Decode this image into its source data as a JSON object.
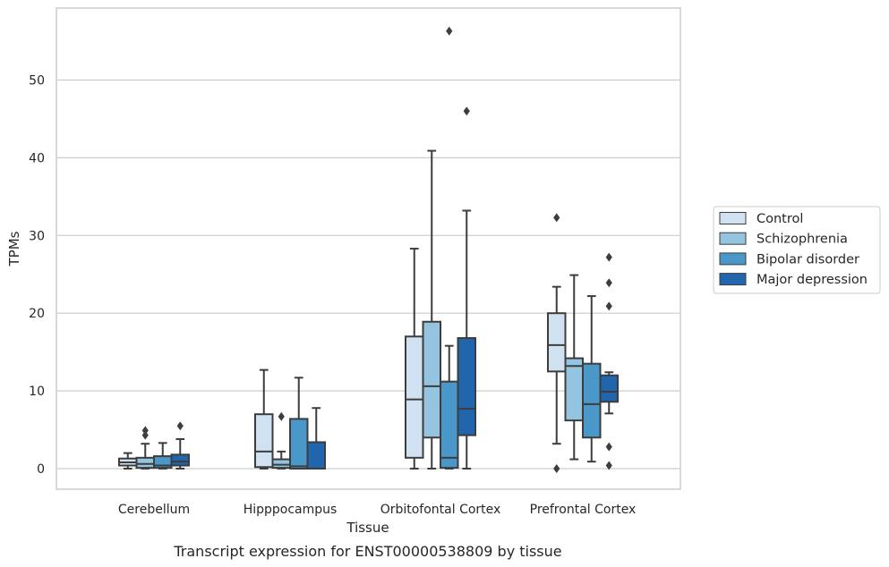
{
  "chart_data": {
    "type": "box",
    "title": "",
    "caption": "Transcript expression for ENST00000538809 by tissue",
    "xlabel": "Tissue",
    "ylabel": "TPMs",
    "ylim": [
      -2.8,
      59.2
    ],
    "yticks": [
      0,
      10,
      20,
      30,
      40,
      50
    ],
    "grid": "horizontal",
    "legend_position": "right",
    "categories": [
      "Cerebellum",
      "Hipppocampus",
      "Orbitofontal Cortex",
      "Prefrontal Cortex"
    ],
    "series": [
      {
        "name": "Control",
        "color": "#d0e1f2",
        "boxes": [
          {
            "whislo": 0.0,
            "q1": 0.4,
            "med": 0.8,
            "q3": 1.3,
            "whishi": 2.0,
            "fliers": []
          },
          {
            "whislo": 0.0,
            "q1": 0.2,
            "med": 2.2,
            "q3": 7.0,
            "whishi": 12.7,
            "fliers": []
          },
          {
            "whislo": 0.0,
            "q1": 1.4,
            "med": 8.9,
            "q3": 17.0,
            "whishi": 28.3,
            "fliers": []
          },
          {
            "whislo": 3.2,
            "q1": 12.5,
            "med": 15.9,
            "q3": 20.0,
            "whishi": 23.4,
            "fliers": [
              32.3,
              0.0
            ]
          }
        ]
      },
      {
        "name": "Schizophrenia",
        "color": "#94c4df",
        "boxes": [
          {
            "whislo": 0.0,
            "q1": 0.1,
            "med": 0.6,
            "q3": 1.4,
            "whishi": 3.2,
            "fliers": [
              4.3,
              4.9
            ]
          },
          {
            "whislo": 0.0,
            "q1": 0.1,
            "med": 0.5,
            "q3": 1.2,
            "whishi": 2.2,
            "fliers": [
              6.7
            ]
          },
          {
            "whislo": 0.0,
            "q1": 4.0,
            "med": 10.6,
            "q3": 18.9,
            "whishi": 40.9,
            "fliers": []
          },
          {
            "whislo": 1.2,
            "q1": 6.2,
            "med": 13.2,
            "q3": 14.2,
            "whishi": 24.9,
            "fliers": []
          }
        ]
      },
      {
        "name": "Bipolar disorder",
        "color": "#4a98c9",
        "boxes": [
          {
            "whislo": 0.0,
            "q1": 0.1,
            "med": 0.4,
            "q3": 1.6,
            "whishi": 3.3,
            "fliers": []
          },
          {
            "whislo": 0.0,
            "q1": 0.0,
            "med": 0.3,
            "q3": 6.4,
            "whishi": 11.7,
            "fliers": []
          },
          {
            "whislo": 0.0,
            "q1": 0.1,
            "med": 1.4,
            "q3": 11.2,
            "whishi": 15.8,
            "fliers": [
              56.3
            ]
          },
          {
            "whislo": 0.9,
            "q1": 4.0,
            "med": 8.3,
            "q3": 13.5,
            "whishi": 22.2,
            "fliers": []
          }
        ]
      },
      {
        "name": "Major depression",
        "color": "#2166ac",
        "boxes": [
          {
            "whislo": 0.0,
            "q1": 0.4,
            "med": 0.9,
            "q3": 1.8,
            "whishi": 3.8,
            "fliers": [
              5.5
            ]
          },
          {
            "whislo": 0.0,
            "q1": 0.0,
            "med": 0.0,
            "q3": 3.4,
            "whishi": 7.8,
            "fliers": []
          },
          {
            "whislo": 0.0,
            "q1": 4.3,
            "med": 7.7,
            "q3": 16.8,
            "whishi": 33.2,
            "fliers": [
              46.0
            ]
          },
          {
            "whislo": 7.1,
            "q1": 8.6,
            "med": 9.9,
            "q3": 12.0,
            "whishi": 12.4,
            "fliers": [
              27.2,
              23.9,
              20.9,
              2.8,
              0.4
            ]
          }
        ]
      }
    ]
  }
}
